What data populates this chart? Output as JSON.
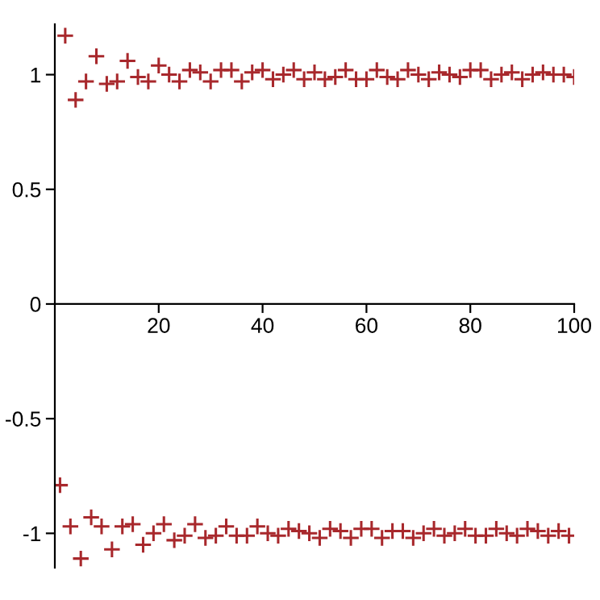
{
  "chart_data": {
    "type": "scatter",
    "marker": "cross",
    "grid": false,
    "legend": false,
    "xlim": [
      0,
      100
    ],
    "ylim": [
      -1.15,
      1.22
    ],
    "xticks": [
      20,
      40,
      60,
      80,
      100
    ],
    "yticks": [
      -1,
      -0.5,
      0,
      0.5,
      1
    ],
    "series": [
      {
        "color": "#a8282c",
        "x": [
          2,
          4,
          6,
          8,
          10,
          12,
          14,
          16,
          18,
          20,
          22,
          24,
          26,
          28,
          30,
          32,
          34,
          36,
          38,
          40,
          42,
          44,
          46,
          48,
          50,
          52,
          54,
          56,
          58,
          60,
          62,
          64,
          66,
          68,
          70,
          72,
          74,
          76,
          78,
          80,
          82,
          84,
          86,
          88,
          90,
          92,
          94,
          96,
          98,
          100
        ],
        "values": [
          1.17,
          0.89,
          0.97,
          1.08,
          0.96,
          0.97,
          1.06,
          0.99,
          0.97,
          1.04,
          1.0,
          0.97,
          1.02,
          1.01,
          0.97,
          1.02,
          1.02,
          0.97,
          1.01,
          1.02,
          0.98,
          1.0,
          1.02,
          0.98,
          1.01,
          0.98,
          0.99,
          1.02,
          0.98,
          0.98,
          1.02,
          0.99,
          0.98,
          1.02,
          1.0,
          0.98,
          1.01,
          1.0,
          0.99,
          1.02,
          1.02,
          0.98,
          1.0,
          1.01,
          0.98,
          1.0,
          1.01,
          1.0,
          1.0,
          0.99
        ]
      },
      {
        "color": "#a8282c",
        "x": [
          1,
          3,
          5,
          7,
          9,
          11,
          13,
          15,
          17,
          19,
          21,
          23,
          25,
          27,
          29,
          31,
          33,
          35,
          37,
          39,
          41,
          43,
          45,
          47,
          49,
          51,
          53,
          55,
          57,
          59,
          61,
          63,
          65,
          67,
          69,
          71,
          73,
          75,
          77,
          79,
          81,
          83,
          85,
          87,
          89,
          91,
          93,
          95,
          97,
          99
        ],
        "values": [
          -0.79,
          -0.97,
          -1.11,
          -0.93,
          -0.97,
          -1.07,
          -0.97,
          -0.96,
          -1.05,
          -1.0,
          -0.96,
          -1.03,
          -1.01,
          -0.96,
          -1.02,
          -1.01,
          -0.97,
          -1.01,
          -1.01,
          -0.97,
          -1.0,
          -1.01,
          -0.98,
          -0.99,
          -1.0,
          -1.02,
          -0.98,
          -0.99,
          -1.02,
          -0.98,
          -0.98,
          -1.02,
          -0.99,
          -0.99,
          -1.02,
          -1.0,
          -0.98,
          -1.01,
          -1.0,
          -0.98,
          -1.01,
          -1.01,
          -0.98,
          -1.0,
          -1.01,
          -0.98,
          -0.99,
          -1.01,
          -0.99,
          -1.01
        ]
      }
    ]
  }
}
